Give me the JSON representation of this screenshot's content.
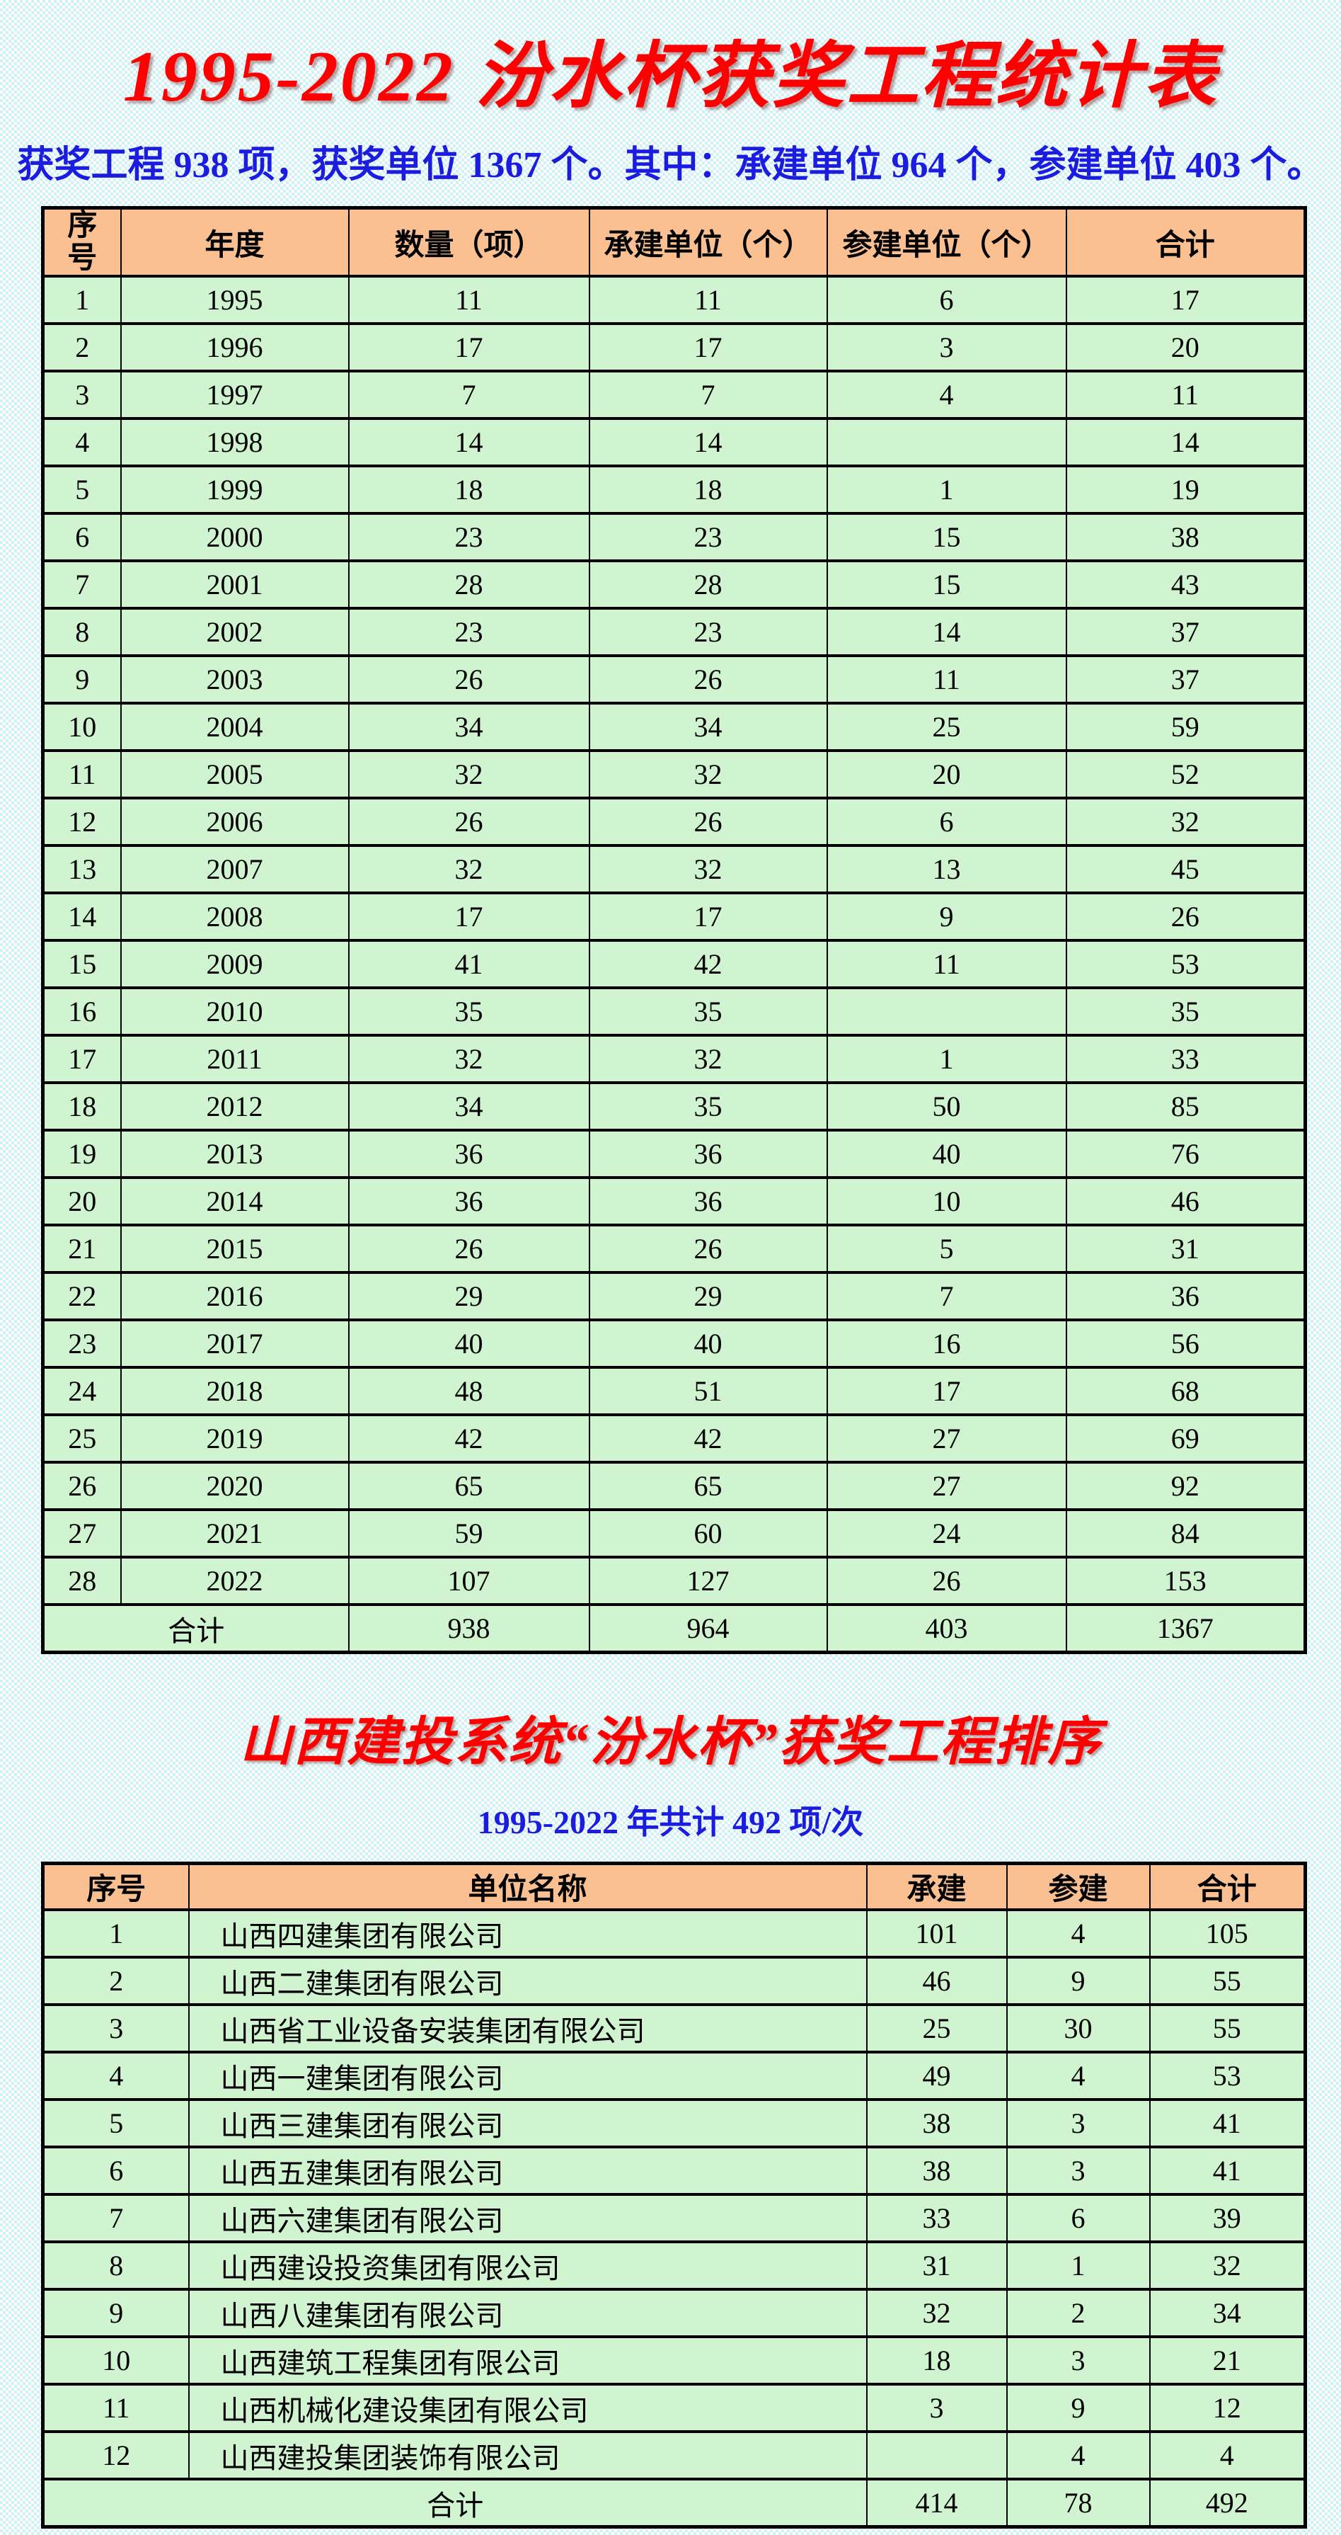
{
  "colors": {
    "header_bg": "#FAC091",
    "row_bg": "#CFF4CF",
    "title_red": "#FE0000",
    "text_blue": "#1C1CE0",
    "border_black": "#000000"
  },
  "header": {
    "title": "1995-2022 汾水杯获奖工程统计表",
    "subtitle": "获奖工程 938 项，获奖单位 1367 个。其中：承建单位 964 个，参建单位 403 个。"
  },
  "awards_table": {
    "headers": [
      "序号",
      "年度",
      "数量（项）",
      "承建单位（个）",
      "参建单位（个）",
      "合计"
    ],
    "rows": [
      [
        "1",
        "1995",
        "11",
        "11",
        "6",
        "17"
      ],
      [
        "2",
        "1996",
        "17",
        "17",
        "3",
        "20"
      ],
      [
        "3",
        "1997",
        "7",
        "7",
        "4",
        "11"
      ],
      [
        "4",
        "1998",
        "14",
        "14",
        "",
        "14"
      ],
      [
        "5",
        "1999",
        "18",
        "18",
        "1",
        "19"
      ],
      [
        "6",
        "2000",
        "23",
        "23",
        "15",
        "38"
      ],
      [
        "7",
        "2001",
        "28",
        "28",
        "15",
        "43"
      ],
      [
        "8",
        "2002",
        "23",
        "23",
        "14",
        "37"
      ],
      [
        "9",
        "2003",
        "26",
        "26",
        "11",
        "37"
      ],
      [
        "10",
        "2004",
        "34",
        "34",
        "25",
        "59"
      ],
      [
        "11",
        "2005",
        "32",
        "32",
        "20",
        "52"
      ],
      [
        "12",
        "2006",
        "26",
        "26",
        "6",
        "32"
      ],
      [
        "13",
        "2007",
        "32",
        "32",
        "13",
        "45"
      ],
      [
        "14",
        "2008",
        "17",
        "17",
        "9",
        "26"
      ],
      [
        "15",
        "2009",
        "41",
        "42",
        "11",
        "53"
      ],
      [
        "16",
        "2010",
        "35",
        "35",
        "",
        "35"
      ],
      [
        "17",
        "2011",
        "32",
        "32",
        "1",
        "33"
      ],
      [
        "18",
        "2012",
        "34",
        "35",
        "50",
        "85"
      ],
      [
        "19",
        "2013",
        "36",
        "36",
        "40",
        "76"
      ],
      [
        "20",
        "2014",
        "36",
        "36",
        "10",
        "46"
      ],
      [
        "21",
        "2015",
        "26",
        "26",
        "5",
        "31"
      ],
      [
        "22",
        "2016",
        "29",
        "29",
        "7",
        "36"
      ],
      [
        "23",
        "2017",
        "40",
        "40",
        "16",
        "56"
      ],
      [
        "24",
        "2018",
        "48",
        "51",
        "17",
        "68"
      ],
      [
        "25",
        "2019",
        "42",
        "42",
        "27",
        "69"
      ],
      [
        "26",
        "2020",
        "65",
        "65",
        "27",
        "92"
      ],
      [
        "27",
        "2021",
        "59",
        "60",
        "24",
        "84"
      ],
      [
        "28",
        "2022",
        "107",
        "127",
        "26",
        "153"
      ]
    ],
    "total_label": "合计",
    "totals": [
      "938",
      "964",
      "403",
      "1367"
    ]
  },
  "ranking": {
    "title": "山西建投系统“汾水杯”获奖工程排序",
    "subtitle": "1995-2022 年共计 492 项/次"
  },
  "ranking_table": {
    "headers": [
      "序号",
      "单位名称",
      "承建",
      "参建",
      "合计"
    ],
    "rows": [
      [
        "1",
        "山西四建集团有限公司",
        "101",
        "4",
        "105"
      ],
      [
        "2",
        "山西二建集团有限公司",
        "46",
        "9",
        "55"
      ],
      [
        "3",
        "山西省工业设备安装集团有限公司",
        "25",
        "30",
        "55"
      ],
      [
        "4",
        "山西一建集团有限公司",
        "49",
        "4",
        "53"
      ],
      [
        "5",
        "山西三建集团有限公司",
        "38",
        "3",
        "41"
      ],
      [
        "6",
        "山西五建集团有限公司",
        "38",
        "3",
        "41"
      ],
      [
        "7",
        "山西六建集团有限公司",
        "33",
        "6",
        "39"
      ],
      [
        "8",
        "山西建设投资集团有限公司",
        "31",
        "1",
        "32"
      ],
      [
        "9",
        "山西八建集团有限公司",
        "32",
        "2",
        "34"
      ],
      [
        "10",
        "山西建筑工程集团有限公司",
        "18",
        "3",
        "21"
      ],
      [
        "11",
        "山西机械化建设集团有限公司",
        "3",
        "9",
        "12"
      ],
      [
        "12",
        "山西建投集团装饰有限公司",
        "",
        "4",
        "4"
      ]
    ],
    "total_label": "合计",
    "totals": [
      "414",
      "78",
      "492"
    ]
  }
}
